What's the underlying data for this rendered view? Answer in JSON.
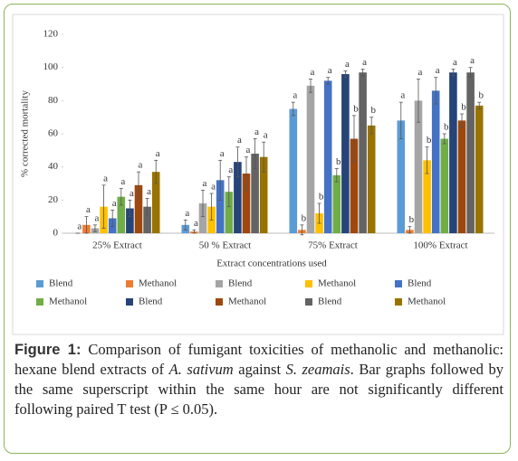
{
  "chart_data": {
    "type": "bar",
    "ylabel": "% corrected mortality",
    "xlabel": "Extract concentrations used",
    "categories": [
      "25% Extract",
      "50 % Extract",
      "75% Extract",
      "100% Extract"
    ],
    "ylim": [
      0,
      120
    ],
    "yticks": [
      0,
      20,
      40,
      60,
      80,
      100,
      120
    ],
    "series": [
      {
        "name": "Blend",
        "color": "#5b9bd5",
        "values": [
          0,
          5,
          75,
          68
        ],
        "errors": [
          0,
          3,
          4,
          11
        ],
        "letters": [
          "a",
          "a",
          "a",
          "a"
        ]
      },
      {
        "name": "Methanol",
        "color": "#ed7d31",
        "values": [
          5,
          1,
          2,
          2
        ],
        "errors": [
          5,
          1,
          3,
          2
        ],
        "letters": [
          "a",
          "a",
          "b",
          "b"
        ]
      },
      {
        "name": "Blend",
        "color": "#a5a5a5",
        "values": [
          3,
          18,
          89,
          80
        ],
        "errors": [
          2,
          8,
          4,
          13
        ],
        "letters": [
          "a",
          "a",
          "a",
          "a"
        ]
      },
      {
        "name": "Methanol",
        "color": "#ffc000",
        "values": [
          16,
          16,
          12,
          44
        ],
        "errors": [
          13,
          8,
          6,
          8
        ],
        "letters": [
          "a",
          "a",
          "b",
          "b"
        ]
      },
      {
        "name": "Blend",
        "color": "#4472c4",
        "values": [
          9,
          32,
          92,
          86
        ],
        "errors": [
          5,
          12,
          2,
          8
        ],
        "letters": [
          "a",
          "a",
          "a",
          "a"
        ]
      },
      {
        "name": "Methanol",
        "color": "#70ad47",
        "values": [
          22,
          25,
          35,
          57
        ],
        "errors": [
          5,
          9,
          4,
          3
        ],
        "letters": [
          "a",
          "a",
          "b",
          "b"
        ]
      },
      {
        "name": "Blend",
        "color": "#264478",
        "values": [
          15,
          43,
          96,
          97
        ],
        "errors": [
          5,
          9,
          2,
          2
        ],
        "letters": [
          "a",
          "a",
          "a",
          "a"
        ]
      },
      {
        "name": "Methanol",
        "color": "#9e480e",
        "values": [
          29,
          36,
          57,
          68
        ],
        "errors": [
          8,
          10,
          14,
          4
        ],
        "letters": [
          "a",
          "a",
          "b",
          "b"
        ]
      },
      {
        "name": "Blend",
        "color": "#636363",
        "values": [
          16,
          48,
          97,
          97
        ],
        "errors": [
          5,
          9,
          2,
          3
        ],
        "letters": [
          "a",
          "a",
          "a",
          "a"
        ]
      },
      {
        "name": "Methanol",
        "color": "#997300",
        "values": [
          37,
          46,
          65,
          77
        ],
        "errors": [
          7,
          9,
          5,
          2
        ],
        "letters": [
          "a",
          "a",
          "b",
          "b"
        ]
      }
    ]
  },
  "caption": {
    "label": "Figure 1:",
    "segments": [
      {
        "text": " Comparison of fumigant toxicities of methanolic and methanolic: hexane blend extracts of ",
        "italic": false
      },
      {
        "text": "A. sativum",
        "italic": true
      },
      {
        "text": " against ",
        "italic": false
      },
      {
        "text": "S. zeamais",
        "italic": true
      },
      {
        "text": ". Bar graphs followed by the same superscript within the same hour are not significantly different following paired T test (P ≤ 0.05).",
        "italic": false
      }
    ]
  }
}
